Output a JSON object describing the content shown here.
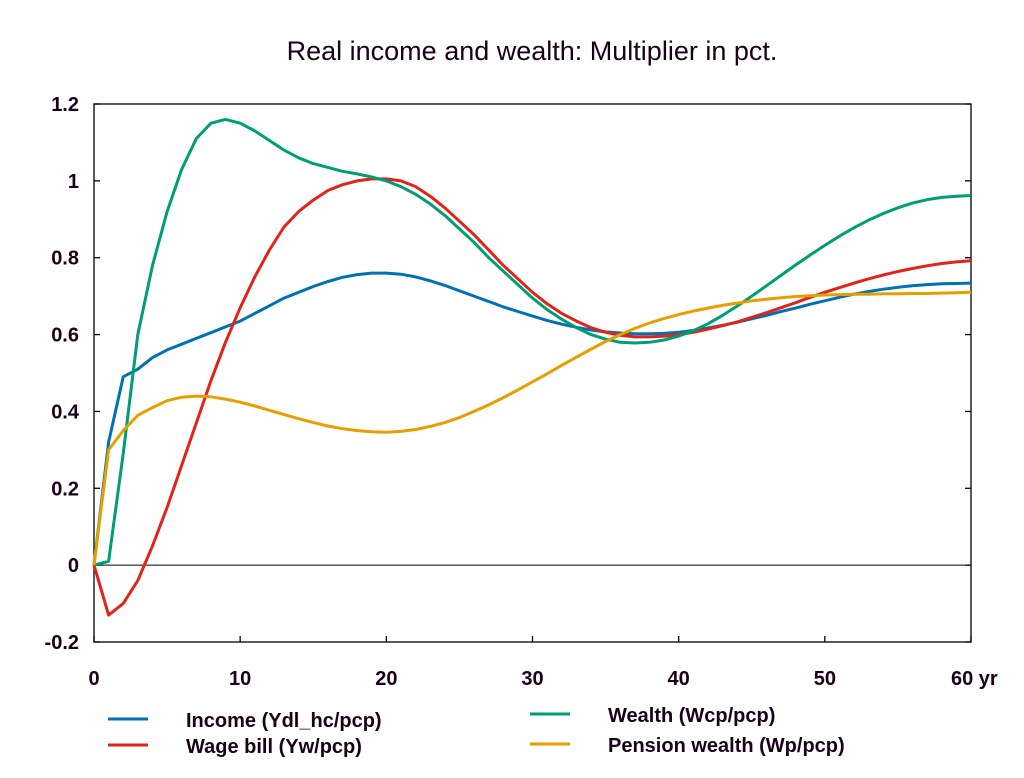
{
  "chart_data": {
    "type": "line",
    "title": "Real income and wealth: Multiplier in pct.",
    "xlabel": "",
    "x_unit_label": "yr",
    "ylabel": "",
    "xlim": [
      0,
      60
    ],
    "ylim": [
      -0.2,
      1.2
    ],
    "xticks": [
      0,
      10,
      20,
      30,
      40,
      50,
      60
    ],
    "xtick_labels": [
      "0",
      "10",
      "20",
      "30",
      "40",
      "50",
      "60 yr"
    ],
    "yticks": [
      -0.2,
      0,
      0.2,
      0.4,
      0.6,
      0.8,
      1,
      1.2
    ],
    "ytick_labels": [
      "-0.2",
      "0",
      "0.2",
      "0.4",
      "0.6",
      "0.8",
      "1",
      "1.2"
    ],
    "grid": false,
    "zero_line": true,
    "legend_position": "bottom",
    "x": [
      0,
      1,
      2,
      3,
      4,
      5,
      6,
      7,
      8,
      9,
      10,
      11,
      12,
      13,
      14,
      15,
      16,
      17,
      18,
      19,
      20,
      21,
      22,
      23,
      24,
      25,
      26,
      27,
      28,
      29,
      30,
      31,
      32,
      33,
      34,
      35,
      36,
      37,
      38,
      39,
      40,
      41,
      42,
      43,
      44,
      45,
      46,
      47,
      48,
      49,
      50,
      51,
      52,
      53,
      54,
      55,
      56,
      57,
      58,
      59,
      60
    ],
    "series": [
      {
        "name": "Income (Ydl_hc/pcp)",
        "color": "#0072b2",
        "values": [
          0.0,
          0.32,
          0.49,
          0.51,
          0.54,
          0.56,
          0.575,
          0.59,
          0.605,
          0.62,
          0.635,
          0.655,
          0.675,
          0.695,
          0.71,
          0.725,
          0.738,
          0.749,
          0.756,
          0.76,
          0.76,
          0.757,
          0.75,
          0.74,
          0.728,
          0.714,
          0.7,
          0.686,
          0.672,
          0.66,
          0.648,
          0.637,
          0.627,
          0.619,
          0.612,
          0.607,
          0.604,
          0.602,
          0.602,
          0.603,
          0.606,
          0.611,
          0.617,
          0.624,
          0.632,
          0.641,
          0.65,
          0.66,
          0.669,
          0.679,
          0.688,
          0.697,
          0.705,
          0.712,
          0.718,
          0.723,
          0.727,
          0.73,
          0.732,
          0.733,
          0.734
        ]
      },
      {
        "name": "Wage bill (Yw/pcp)",
        "color": "#e2231a",
        "values": [
          0.0,
          -0.13,
          -0.1,
          -0.04,
          0.05,
          0.15,
          0.26,
          0.37,
          0.48,
          0.58,
          0.67,
          0.75,
          0.82,
          0.88,
          0.92,
          0.95,
          0.975,
          0.99,
          1.0,
          1.005,
          1.005,
          1.0,
          0.985,
          0.96,
          0.93,
          0.895,
          0.86,
          0.82,
          0.78,
          0.745,
          0.71,
          0.68,
          0.655,
          0.635,
          0.618,
          0.606,
          0.598,
          0.594,
          0.594,
          0.596,
          0.6,
          0.606,
          0.614,
          0.623,
          0.633,
          0.645,
          0.657,
          0.67,
          0.683,
          0.697,
          0.71,
          0.722,
          0.734,
          0.745,
          0.755,
          0.764,
          0.772,
          0.779,
          0.785,
          0.789,
          0.792
        ]
      },
      {
        "name": "Wealth (Wcp/pcp)",
        "color": "#009e73",
        "values": [
          0.0,
          0.01,
          0.29,
          0.6,
          0.78,
          0.92,
          1.03,
          1.11,
          1.15,
          1.16,
          1.15,
          1.13,
          1.105,
          1.08,
          1.06,
          1.045,
          1.035,
          1.025,
          1.018,
          1.01,
          1.0,
          0.985,
          0.965,
          0.94,
          0.91,
          0.875,
          0.84,
          0.8,
          0.765,
          0.73,
          0.695,
          0.665,
          0.64,
          0.618,
          0.6,
          0.588,
          0.58,
          0.578,
          0.58,
          0.586,
          0.596,
          0.61,
          0.628,
          0.65,
          0.674,
          0.7,
          0.727,
          0.754,
          0.781,
          0.807,
          0.832,
          0.856,
          0.878,
          0.898,
          0.915,
          0.93,
          0.942,
          0.951,
          0.957,
          0.96,
          0.962
        ]
      },
      {
        "name": "Pension wealth (Wp/pcp)",
        "color": "#e69f00",
        "values": [
          0.0,
          0.3,
          0.35,
          0.39,
          0.41,
          0.428,
          0.437,
          0.44,
          0.438,
          0.432,
          0.424,
          0.414,
          0.403,
          0.392,
          0.381,
          0.371,
          0.362,
          0.355,
          0.35,
          0.347,
          0.346,
          0.348,
          0.353,
          0.361,
          0.371,
          0.384,
          0.4,
          0.417,
          0.436,
          0.456,
          0.477,
          0.498,
          0.52,
          0.541,
          0.562,
          0.582,
          0.6,
          0.616,
          0.63,
          0.642,
          0.652,
          0.661,
          0.669,
          0.676,
          0.682,
          0.688,
          0.692,
          0.696,
          0.699,
          0.701,
          0.703,
          0.704,
          0.705,
          0.705,
          0.706,
          0.706,
          0.707,
          0.707,
          0.708,
          0.709,
          0.71
        ]
      }
    ]
  }
}
